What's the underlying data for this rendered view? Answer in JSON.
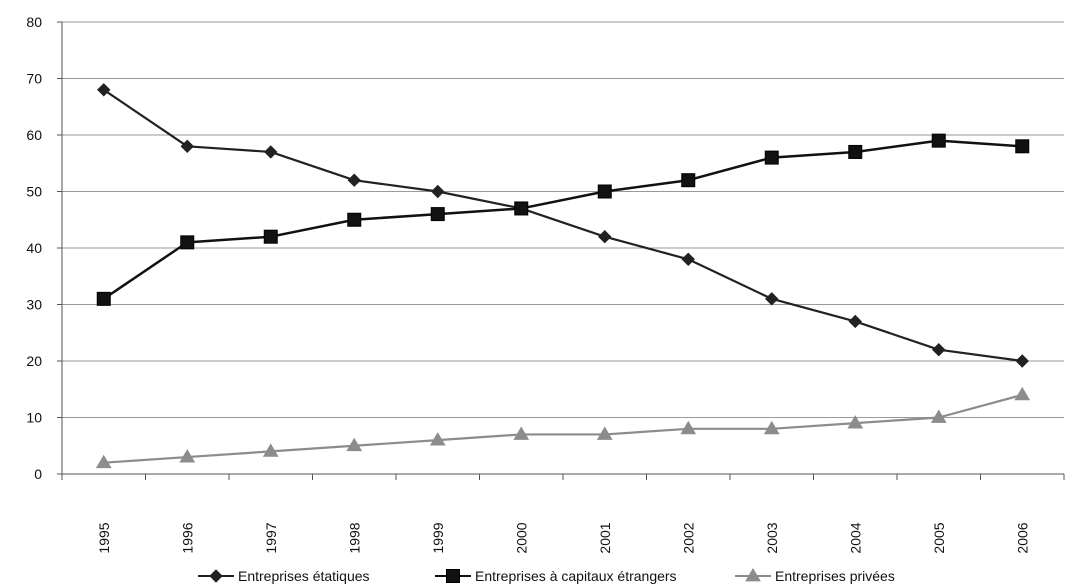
{
  "chart_data": {
    "type": "line",
    "title": "",
    "xlabel": "",
    "ylabel": "",
    "x": [
      "1995",
      "1996",
      "1997",
      "1998",
      "1999",
      "2000",
      "2001",
      "2002",
      "2003",
      "2004",
      "2005",
      "2006"
    ],
    "ylim": [
      0,
      80
    ],
    "yticks": [
      0,
      10,
      20,
      30,
      40,
      50,
      60,
      70,
      80
    ],
    "grid": "horizontal",
    "legend_position": "bottom",
    "series": [
      {
        "name": "Entreprises étatiques",
        "marker": "diamond",
        "color": "#222222",
        "values": [
          68,
          58,
          57,
          52,
          50,
          47,
          42,
          38,
          31,
          27,
          22,
          20
        ]
      },
      {
        "name": "Entreprises à capitaux étrangers",
        "marker": "square",
        "color": "#111111",
        "values": [
          31,
          41,
          42,
          45,
          46,
          47,
          50,
          52,
          56,
          57,
          59,
          58
        ]
      },
      {
        "name": "Entreprises privées",
        "marker": "triangle",
        "color": "#8c8c8c",
        "values": [
          2,
          3,
          4,
          5,
          6,
          7,
          7,
          8,
          8,
          9,
          10,
          14
        ]
      }
    ]
  }
}
